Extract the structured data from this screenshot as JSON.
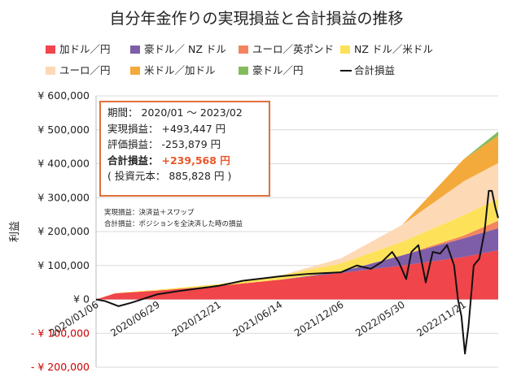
{
  "chart_data": {
    "type": "area",
    "title": "自分年金作りの実現損益と合計損益の推移",
    "ylabel": "利益",
    "ylim": [
      -200000,
      600000
    ],
    "yticks": [
      {
        "value": 600000,
        "label": "¥ 600,000"
      },
      {
        "value": 500000,
        "label": "¥ 500,000"
      },
      {
        "value": 400000,
        "label": "¥ 400,000"
      },
      {
        "value": 300000,
        "label": "¥ 300,000"
      },
      {
        "value": 200000,
        "label": "¥ 200,000"
      },
      {
        "value": 100000,
        "label": "¥ 100,000"
      },
      {
        "value": 0,
        "label": "¥ 0"
      },
      {
        "value": -100000,
        "label": "- ¥ 100,000"
      },
      {
        "value": -200000,
        "label": "- ¥ 200,000"
      }
    ],
    "xlim": [
      "2020/01/06",
      "2023/02/28"
    ],
    "xticks": [
      "2020/01/06",
      "2020/06/29",
      "2020/12/21",
      "2021/06/14",
      "2021/12/06",
      "2022/05/30",
      "2022/11/21"
    ],
    "grid": true,
    "legend_position": "top",
    "series": [
      {
        "name": "加ドル／円",
        "color": "#f0454a",
        "x": [
          "2020/01/06",
          "2020/03/01",
          "2020/06/29",
          "2020/12/21",
          "2021/06/14",
          "2021/12/06",
          "2022/05/30",
          "2022/11/21",
          "2023/02/28"
        ],
        "values": [
          0,
          18000,
          26000,
          40000,
          58000,
          78000,
          100000,
          125000,
          145000
        ]
      },
      {
        "name": "豪ドル／ NZ ドル",
        "color": "#7e5ea8",
        "x": [
          "2020/01/06",
          "2021/06/14",
          "2021/12/06",
          "2022/05/30",
          "2022/11/21",
          "2023/02/28"
        ],
        "values": [
          0,
          0,
          4000,
          30000,
          55000,
          65000
        ]
      },
      {
        "name": "ユーロ／英ポンド",
        "color": "#f4845f",
        "x": [
          "2020/01/06",
          "2022/05/30",
          "2022/11/21",
          "2023/02/28"
        ],
        "values": [
          0,
          0,
          8000,
          22000
        ]
      },
      {
        "name": "NZ ドル／米ドル",
        "color": "#fde259",
        "x": [
          "2020/01/06",
          "2020/12/21",
          "2021/06/14",
          "2021/12/06",
          "2022/05/30",
          "2022/11/21",
          "2023/02/28"
        ],
        "values": [
          0,
          5000,
          12000,
          24000,
          40000,
          60000,
          65000
        ]
      },
      {
        "name": "ユーロ／円",
        "color": "#fdd9b5",
        "x": [
          "2020/01/06",
          "2021/06/14",
          "2021/12/06",
          "2022/05/30",
          "2022/11/21",
          "2023/02/28"
        ],
        "values": [
          0,
          0,
          15000,
          50000,
          100000,
          105000
        ]
      },
      {
        "name": "米ドル／加ドル",
        "color": "#f4a93b",
        "x": [
          "2020/01/06",
          "2022/05/30",
          "2022/11/21",
          "2023/02/28"
        ],
        "values": [
          0,
          0,
          65000,
          80000
        ]
      },
      {
        "name": "豪ドル／円",
        "color": "#84bc5b",
        "x": [
          "2020/01/06",
          "2022/11/21",
          "2023/02/28"
        ],
        "values": [
          0,
          0,
          13000
        ]
      }
    ],
    "line_series": {
      "name": "合計損益",
      "color": "#111111",
      "x": [
        "2020/01/06",
        "2020/02/01",
        "2020/03/10",
        "2020/04/15",
        "2020/06/29",
        "2020/09/01",
        "2020/12/21",
        "2021/03/01",
        "2021/06/14",
        "2021/09/01",
        "2021/12/06",
        "2022/01/20",
        "2022/03/01",
        "2022/04/01",
        "2022/05/01",
        "2022/05/20",
        "2022/06/10",
        "2022/06/25",
        "2022/07/15",
        "2022/08/05",
        "2022/08/25",
        "2022/09/15",
        "2022/10/05",
        "2022/10/25",
        "2022/11/05",
        "2022/11/15",
        "2022/11/25",
        "2022/12/05",
        "2022/12/20",
        "2023/01/05",
        "2023/01/20",
        "2023/02/01",
        "2023/02/10",
        "2023/02/20",
        "2023/02/28"
      ],
      "values": [
        0,
        -5000,
        -20000,
        -10000,
        15000,
        25000,
        40000,
        55000,
        68000,
        75000,
        80000,
        100000,
        90000,
        110000,
        140000,
        110000,
        60000,
        140000,
        160000,
        50000,
        140000,
        135000,
        160000,
        100000,
        0,
        -50000,
        -160000,
        -80000,
        100000,
        120000,
        200000,
        320000,
        320000,
        270000,
        240000
      ]
    }
  },
  "info": {
    "period_label": "期間：",
    "period_value": "2020/01 ～ 2023/02",
    "realized_label": "実現損益：",
    "realized_value": "+493,447 円",
    "unrealized_label": "評価損益：",
    "unrealized_value": "-253,879 円",
    "total_label": "合計損益：",
    "total_value": "+239,568 円",
    "principal": "( 投資元本： 885,828 円 )"
  },
  "notes": {
    "note1": "実現損益：決済益＋スワップ",
    "note2": "合計損益：ポジションを全決済した時の損益"
  },
  "colors": {
    "frame": "#e0703a",
    "accent": "#e8572a",
    "negative_tick": "#cc0000"
  }
}
